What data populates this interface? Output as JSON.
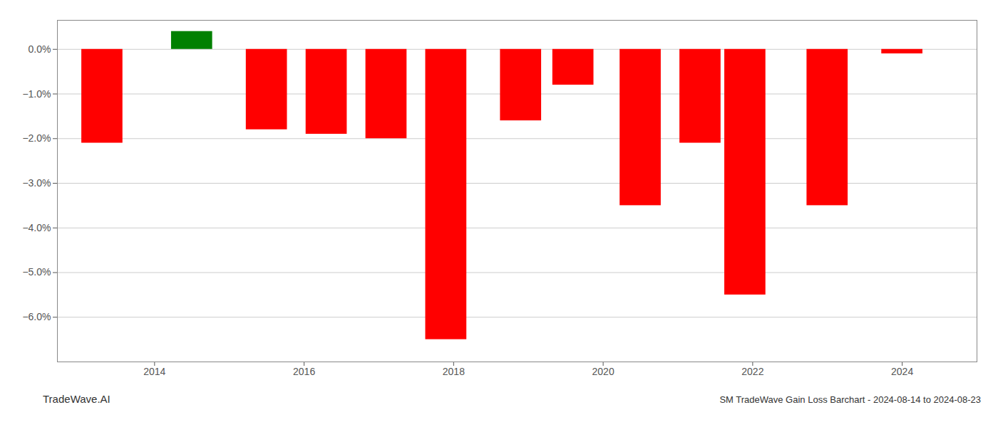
{
  "chart_data": {
    "type": "bar",
    "title": "SM TradeWave Gain Loss Barchart - 2024-08-14 to 2024-08-23",
    "annotations": [
      "TradeWave.AI"
    ],
    "x": [
      2013.3,
      2014.5,
      2015.5,
      2016.3,
      2017.1,
      2017.9,
      2018.9,
      2019.6,
      2020.5,
      2021.3,
      2021.9,
      2023.0,
      2024.0
    ],
    "values": [
      -2.1,
      0.4,
      -1.8,
      -1.9,
      -2.0,
      -6.5,
      -1.6,
      -0.8,
      -3.5,
      -2.1,
      -5.5,
      -3.5,
      -0.1
    ],
    "colors": [
      "#ff0000",
      "#008000",
      "#ff0000",
      "#ff0000",
      "#ff0000",
      "#ff0000",
      "#ff0000",
      "#ff0000",
      "#ff0000",
      "#ff0000",
      "#ff0000",
      "#ff0000",
      "#ff0000"
    ],
    "xlim": [
      2012.7,
      2025.0
    ],
    "xticks": [
      2014,
      2016,
      2018,
      2020,
      2022,
      2024
    ],
    "ylim": [
      -7.0,
      0.65
    ],
    "yticks": [
      {
        "value": 0.0,
        "label": "0.0%"
      },
      {
        "value": -1.0,
        "label": "−1.0%"
      },
      {
        "value": -2.0,
        "label": "−2.0%"
      },
      {
        "value": -3.0,
        "label": "−3.0%"
      },
      {
        "value": -4.0,
        "label": "−4.0%"
      },
      {
        "value": -5.0,
        "label": "−5.0%"
      },
      {
        "value": -6.0,
        "label": "−6.0%"
      }
    ],
    "grid": true
  }
}
